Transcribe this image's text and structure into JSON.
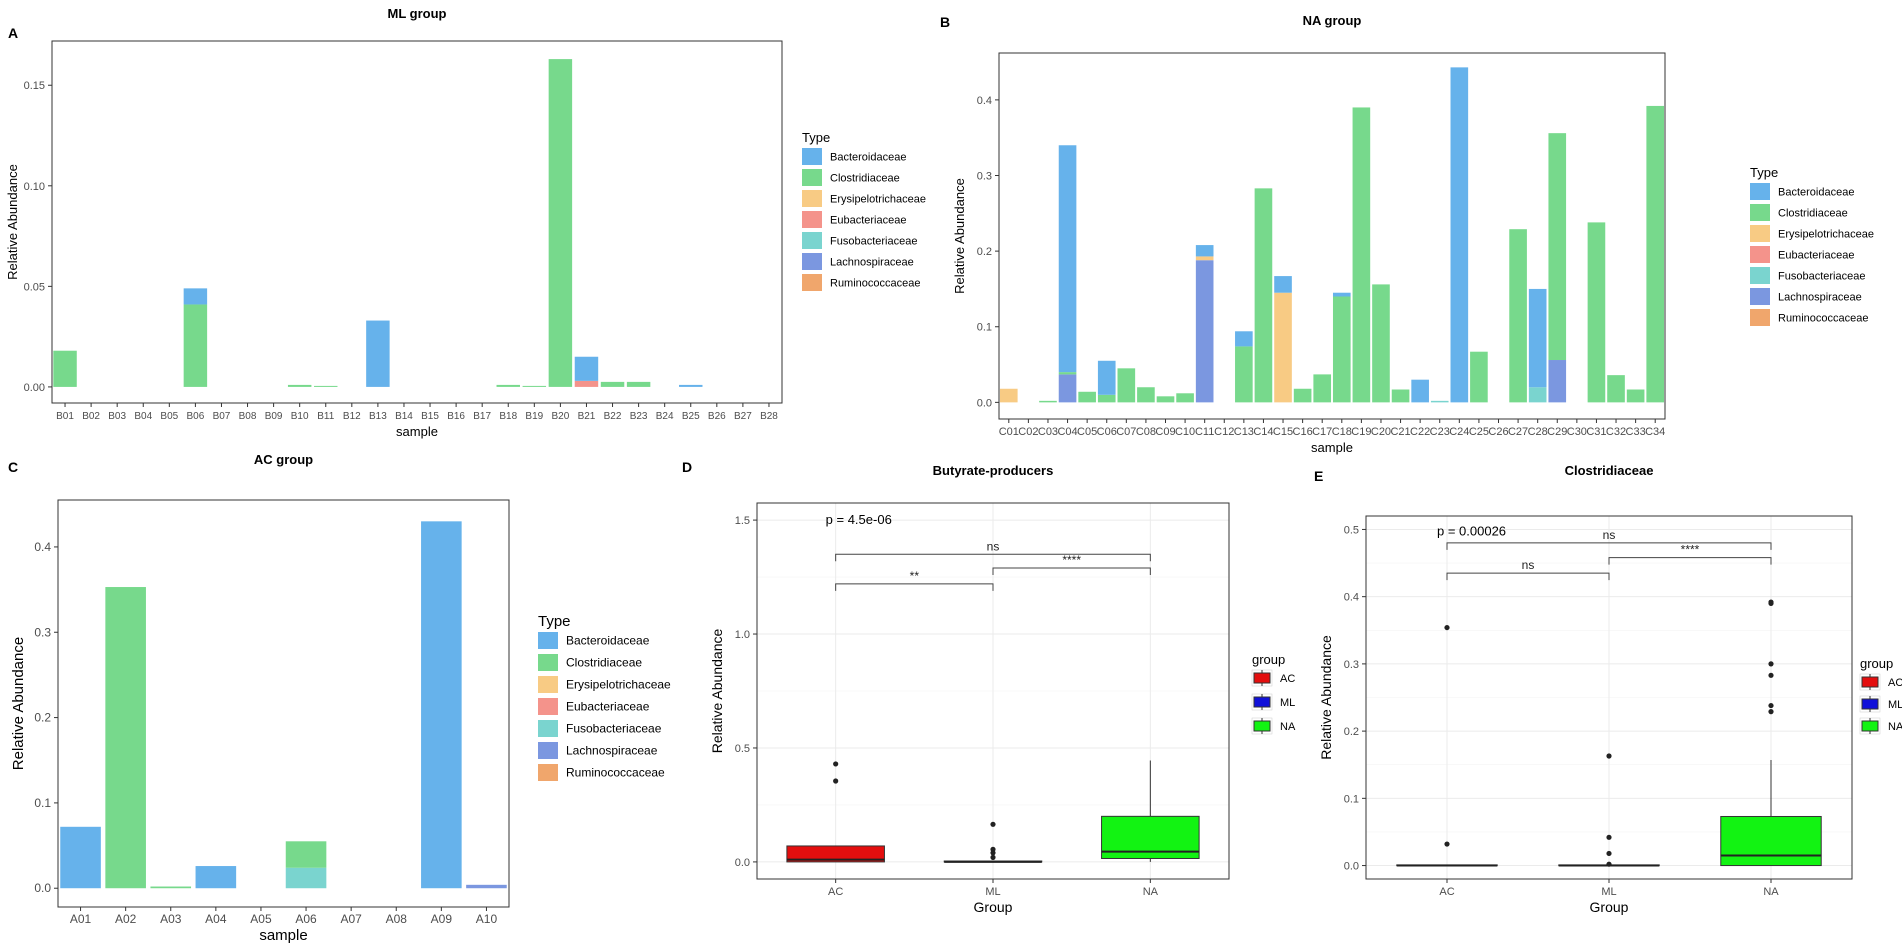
{
  "colors": {
    "Bacteroidaceae": "#66b2eb",
    "Clostridiaceae": "#77d98c",
    "Erysipelotrichaceae": "#f8cb84",
    "Eubacteriaceae": "#f4938b",
    "Fusobacteriaceae": "#7ad4cf",
    "Lachnospiraceae": "#7b97e0",
    "Ruminococcaceae": "#f0a66c",
    "AC": "#e30e0e",
    "ML": "#1010d9",
    "NA": "#12f312"
  },
  "chart_data": [
    {
      "panel": "A",
      "type": "bar",
      "stacked": true,
      "title": "ML group",
      "xlabel": "sample",
      "ylabel": "Relative Abundance",
      "ylim": [
        -0.008,
        0.172
      ],
      "yticks": [
        "0.00",
        "0.05",
        "0.10",
        "0.15"
      ],
      "ytick_values": [
        0,
        0.05,
        0.1,
        0.15
      ],
      "legend_title": "Type",
      "legend": [
        "Bacteroidaceae",
        "Clostridiaceae",
        "Erysipelotrichaceae",
        "Eubacteriaceae",
        "Fusobacteriaceae",
        "Lachnospiraceae",
        "Ruminococcaceae"
      ],
      "categories": [
        "B01",
        "B02",
        "B03",
        "B04",
        "B05",
        "B06",
        "B07",
        "B08",
        "B09",
        "B10",
        "B11",
        "B12",
        "B13",
        "B14",
        "B15",
        "B16",
        "B17",
        "B18",
        "B19",
        "B20",
        "B21",
        "B22",
        "B23",
        "B24",
        "B25",
        "B26",
        "B27",
        "B28"
      ],
      "series": [
        {
          "name": "Bacteroidaceae",
          "values": [
            0,
            0,
            0,
            0,
            0,
            0.008,
            0,
            0,
            0,
            0,
            0,
            0,
            0.033,
            0,
            0,
            0,
            0,
            0,
            0,
            0,
            0.012,
            0,
            0,
            0,
            0.001,
            0,
            0,
            0
          ]
        },
        {
          "name": "Clostridiaceae",
          "values": [
            0.018,
            0,
            0,
            0,
            0,
            0.041,
            0,
            0,
            0,
            0.001,
            0.0005,
            0,
            0,
            0,
            0,
            0,
            0,
            0.001,
            0.0005,
            0.163,
            0,
            0.0025,
            0.0025,
            0,
            0,
            0,
            0,
            0
          ]
        },
        {
          "name": "Erysipelotrichaceae",
          "values": [
            0,
            0,
            0,
            0,
            0,
            0,
            0,
            0,
            0,
            0,
            0,
            0,
            0,
            0,
            0,
            0,
            0,
            0,
            0,
            0,
            0,
            0,
            0,
            0,
            0,
            0,
            0,
            0
          ]
        },
        {
          "name": "Eubacteriaceae",
          "values": [
            0,
            0,
            0,
            0,
            0,
            0,
            0,
            0,
            0,
            0,
            0,
            0,
            0,
            0,
            0,
            0,
            0,
            0,
            0,
            0,
            0.003,
            0,
            0,
            0,
            0,
            0,
            0,
            0
          ]
        },
        {
          "name": "Fusobacteriaceae",
          "values": [
            0,
            0,
            0,
            0,
            0,
            0,
            0,
            0,
            0,
            0,
            0,
            0,
            0,
            0,
            0,
            0,
            0,
            0,
            0,
            0,
            0,
            0,
            0,
            0,
            0,
            0,
            0,
            0
          ]
        },
        {
          "name": "Lachnospiraceae",
          "values": [
            0,
            0,
            0,
            0,
            0,
            0,
            0,
            0,
            0,
            0,
            0,
            0,
            0,
            0,
            0,
            0,
            0,
            0,
            0,
            0,
            0,
            0,
            0,
            0,
            0,
            0,
            0,
            0
          ]
        },
        {
          "name": "Ruminococcaceae",
          "values": [
            0,
            0,
            0,
            0,
            0,
            0,
            0,
            0,
            0,
            0,
            0,
            0,
            0,
            0,
            0,
            0,
            0,
            0,
            0,
            0,
            0,
            0,
            0,
            0,
            0,
            0,
            0,
            0
          ]
        }
      ]
    },
    {
      "panel": "B",
      "type": "bar",
      "stacked": true,
      "title": "NA  group",
      "xlabel": "sample",
      "ylabel": "Relative Abundance",
      "ylim": [
        -0.022,
        0.462
      ],
      "yticks": [
        "0.0",
        "0.1",
        "0.2",
        "0.3",
        "0.4"
      ],
      "ytick_values": [
        0,
        0.1,
        0.2,
        0.3,
        0.4
      ],
      "legend_title": "Type",
      "legend": [
        "Bacteroidaceae",
        "Clostridiaceae",
        "Erysipelotrichaceae",
        "Eubacteriaceae",
        "Fusobacteriaceae",
        "Lachnospiraceae",
        "Ruminococcaceae"
      ],
      "categories": [
        "C01",
        "C02",
        "C03",
        "C04",
        "C05",
        "C06",
        "C07",
        "C08",
        "C09",
        "C10",
        "C11",
        "C12",
        "C13",
        "C14",
        "C15",
        "C16",
        "C17",
        "C18",
        "C19",
        "C20",
        "C21",
        "C22",
        "C23",
        "C24",
        "C25",
        "C26",
        "C27",
        "C28",
        "C29",
        "C30",
        "C31",
        "C32",
        "C33",
        "C34"
      ],
      "series": [
        {
          "name": "Bacteroidaceae",
          "values": [
            0,
            0,
            0,
            0.3,
            0,
            0.045,
            0,
            0,
            0,
            0,
            0.015,
            0,
            0.02,
            0,
            0.022,
            0,
            0,
            0.005,
            0,
            0,
            0,
            0.03,
            0,
            0.443,
            0,
            0,
            0,
            0.13,
            0,
            0,
            0,
            0,
            0,
            0
          ]
        },
        {
          "name": "Clostridiaceae",
          "values": [
            0,
            0,
            0.002,
            0.003,
            0.014,
            0.01,
            0.045,
            0.02,
            0.008,
            0.012,
            0,
            0,
            0.074,
            0.283,
            0,
            0.018,
            0.037,
            0.14,
            0.39,
            0.156,
            0.017,
            0,
            0,
            0,
            0.067,
            0,
            0.229,
            0,
            0.3,
            0,
            0.238,
            0.036,
            0.017,
            0.392
          ]
        },
        {
          "name": "Erysipelotrichaceae",
          "values": [
            0.018,
            0,
            0,
            0,
            0,
            0,
            0,
            0,
            0,
            0,
            0.005,
            0,
            0,
            0,
            0.145,
            0,
            0,
            0,
            0,
            0,
            0,
            0,
            0,
            0,
            0,
            0,
            0,
            0,
            0,
            0,
            0,
            0,
            0,
            0
          ]
        },
        {
          "name": "Eubacteriaceae",
          "values": [
            0,
            0,
            0,
            0,
            0,
            0,
            0,
            0,
            0,
            0,
            0,
            0,
            0,
            0,
            0,
            0,
            0,
            0,
            0,
            0,
            0,
            0,
            0,
            0,
            0,
            0,
            0,
            0,
            0,
            0,
            0,
            0,
            0,
            0
          ]
        },
        {
          "name": "Fusobacteriaceae",
          "values": [
            0,
            0,
            0,
            0,
            0,
            0,
            0,
            0,
            0,
            0,
            0,
            0,
            0,
            0,
            0,
            0,
            0,
            0,
            0,
            0,
            0,
            0,
            0.002,
            0,
            0,
            0,
            0,
            0.02,
            0,
            0,
            0,
            0,
            0,
            0
          ]
        },
        {
          "name": "Lachnospiraceae",
          "values": [
            0,
            0,
            0,
            0.037,
            0,
            0,
            0,
            0,
            0,
            0,
            0.188,
            0,
            0,
            0,
            0,
            0,
            0,
            0,
            0,
            0,
            0,
            0,
            0,
            0,
            0,
            0,
            0,
            0,
            0.056,
            0,
            0,
            0,
            0,
            0
          ]
        },
        {
          "name": "Ruminococcaceae",
          "values": [
            0,
            0,
            0,
            0,
            0,
            0,
            0,
            0,
            0,
            0,
            0,
            0,
            0,
            0,
            0,
            0,
            0,
            0,
            0,
            0,
            0,
            0,
            0,
            0,
            0,
            0,
            0,
            0,
            0,
            0,
            0,
            0,
            0,
            0
          ]
        }
      ]
    },
    {
      "panel": "C",
      "type": "bar",
      "stacked": true,
      "title": "AC group",
      "xlabel": "sample",
      "ylabel": "Relative Abundance",
      "ylim": [
        -0.022,
        0.455
      ],
      "yticks": [
        "0.0",
        "0.1",
        "0.2",
        "0.3",
        "0.4"
      ],
      "ytick_values": [
        0,
        0.1,
        0.2,
        0.3,
        0.4
      ],
      "legend_title": "Type",
      "legend": [
        "Bacteroidaceae",
        "Clostridiaceae",
        "Erysipelotrichaceae",
        "Eubacteriaceae",
        "Fusobacteriaceae",
        "Lachnospiraceae",
        "Ruminococcaceae"
      ],
      "categories": [
        "A01",
        "A02",
        "A03",
        "A04",
        "A05",
        "A06",
        "A07",
        "A08",
        "A09",
        "A10"
      ],
      "series": [
        {
          "name": "Bacteroidaceae",
          "values": [
            0.072,
            0,
            0,
            0.026,
            0,
            0,
            0,
            0,
            0.43,
            0
          ]
        },
        {
          "name": "Clostridiaceae",
          "values": [
            0,
            0.353,
            0.002,
            0,
            0,
            0.031,
            0,
            0,
            0,
            0
          ]
        },
        {
          "name": "Erysipelotrichaceae",
          "values": [
            0,
            0,
            0,
            0,
            0,
            0,
            0,
            0,
            0,
            0
          ]
        },
        {
          "name": "Eubacteriaceae",
          "values": [
            0,
            0,
            0,
            0,
            0,
            0,
            0,
            0,
            0,
            0
          ]
        },
        {
          "name": "Fusobacteriaceae",
          "values": [
            0,
            0,
            0,
            0,
            0,
            0.024,
            0,
            0,
            0,
            0
          ]
        },
        {
          "name": "Lachnospiraceae",
          "values": [
            0,
            0,
            0,
            0,
            0,
            0,
            0,
            0,
            0,
            0.004
          ]
        },
        {
          "name": "Ruminococcaceae",
          "values": [
            0,
            0,
            0,
            0,
            0,
            0,
            0,
            0,
            0,
            0
          ]
        }
      ]
    },
    {
      "panel": "D",
      "type": "box",
      "title": "Butyrate-producers",
      "xlabel": "Group",
      "ylabel": "Relative Abundance",
      "ylim": [
        -0.075,
        1.575
      ],
      "yticks": [
        "0.0",
        "0.5",
        "1.0",
        "1.5"
      ],
      "ytick_values": [
        0,
        0.5,
        1.0,
        1.5
      ],
      "legend_title": "group",
      "legend": [
        "AC",
        "ML",
        "NA"
      ],
      "categories": [
        "AC",
        "ML",
        "NA"
      ],
      "boxes": [
        {
          "group": "AC",
          "q1": 0.0,
          "median": 0.01,
          "q3": 0.07,
          "whisker_low": 0.0,
          "whisker_high": 0.07,
          "outliers": [
            0.355,
            0.43
          ]
        },
        {
          "group": "ML",
          "q1": 0.0,
          "median": 0.0,
          "q3": 0.004,
          "whisker_low": 0.0,
          "whisker_high": 0.004,
          "outliers": [
            0.02,
            0.04,
            0.055,
            0.165
          ]
        },
        {
          "group": "NA",
          "q1": 0.015,
          "median": 0.045,
          "q3": 0.2,
          "whisker_low": 0.0,
          "whisker_high": 0.445,
          "outliers": []
        }
      ],
      "annotation": "p = 4.5e-06",
      "annotation_y": 1.5,
      "comparisons": [
        {
          "from": "AC",
          "to": "ML",
          "label": "**",
          "y": 1.22
        },
        {
          "from": "ML",
          "to": "NA",
          "label": "****",
          "y": 1.29
        },
        {
          "from": "AC",
          "to": "NA",
          "label": "ns",
          "y": 1.35
        }
      ]
    },
    {
      "panel": "E",
      "type": "box",
      "title": "Clostridiaceae",
      "xlabel": "Group",
      "ylabel": "Relative Abundance",
      "ylim": [
        -0.02,
        0.52
      ],
      "yticks": [
        "0.0",
        "0.1",
        "0.2",
        "0.3",
        "0.4",
        "0.5"
      ],
      "ytick_values": [
        0,
        0.1,
        0.2,
        0.3,
        0.4,
        0.5
      ],
      "legend_title": "group",
      "legend": [
        "AC",
        "ML",
        "NA"
      ],
      "categories": [
        "AC",
        "ML",
        "NA"
      ],
      "boxes": [
        {
          "group": "AC",
          "q1": 0.0,
          "median": 0.0,
          "q3": 0.001,
          "whisker_low": 0.0,
          "whisker_high": 0.001,
          "outliers": [
            0.032,
            0.354
          ]
        },
        {
          "group": "ML",
          "q1": 0.0,
          "median": 0.0,
          "q3": 0.001,
          "whisker_low": 0.0,
          "whisker_high": 0.001,
          "outliers": [
            0.002,
            0.018,
            0.042,
            0.163
          ]
        },
        {
          "group": "NA",
          "q1": 0.0,
          "median": 0.015,
          "q3": 0.073,
          "whisker_low": 0.0,
          "whisker_high": 0.157,
          "outliers": [
            0.229,
            0.238,
            0.283,
            0.3,
            0.39,
            0.392
          ]
        }
      ],
      "annotation": "p = 0.00026",
      "annotation_y": 0.497,
      "comparisons": [
        {
          "from": "AC",
          "to": "ML",
          "label": "ns",
          "y": 0.435
        },
        {
          "from": "ML",
          "to": "NA",
          "label": "****",
          "y": 0.458
        },
        {
          "from": "AC",
          "to": "NA",
          "label": "ns",
          "y": 0.48
        }
      ]
    }
  ]
}
